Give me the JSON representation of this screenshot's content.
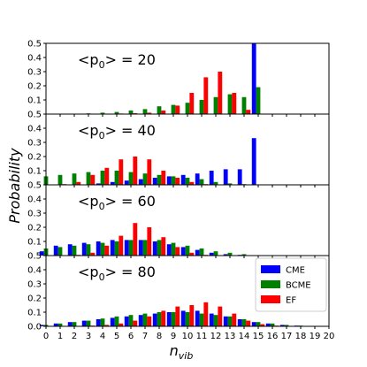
{
  "chart_data": {
    "type": "bar",
    "xlabel": "n",
    "xlabel_sub": "vib",
    "ylabel": "Probability",
    "x": [
      0,
      1,
      2,
      3,
      4,
      5,
      6,
      7,
      8,
      9,
      10,
      11,
      12,
      13,
      14,
      15,
      16,
      17,
      18,
      19,
      20
    ],
    "xlim": [
      0,
      20
    ],
    "ylim": [
      0,
      0.5
    ],
    "yticks": [
      "0.0",
      "0.1",
      "0.2",
      "0.3",
      "0.4",
      "0.5"
    ],
    "legend": {
      "placement": "bottom-right panel, upper-right",
      "entries": [
        {
          "name": "CME",
          "color": "#0000ff"
        },
        {
          "name": "BCME",
          "color": "#008000"
        },
        {
          "name": "EF",
          "color": "#ff0000"
        }
      ]
    },
    "panels": [
      {
        "label_prefix": "<p",
        "label_sub": "0",
        "label_suffix": "> = 20",
        "series": [
          {
            "name": "CME",
            "color": "#0000ff",
            "values": [
              0,
              0,
              0,
              0,
              0,
              0,
              0,
              0,
              0,
              0,
              0,
              0,
              0,
              0,
              0,
              0.5,
              0,
              0,
              0,
              0,
              0
            ]
          },
          {
            "name": "BCME",
            "color": "#008000",
            "values": [
              0,
              0,
              0.003,
              0.005,
              0.01,
              0.015,
              0.025,
              0.035,
              0.055,
              0.065,
              0.08,
              0.1,
              0.12,
              0.14,
              0.12,
              0.19,
              0,
              0,
              0,
              0,
              0
            ]
          },
          {
            "name": "EF",
            "color": "#ff0000",
            "values": [
              0,
              0,
              0,
              0,
              0.002,
              0.004,
              0.006,
              0.01,
              0.025,
              0.06,
              0.15,
              0.26,
              0.3,
              0.15,
              0.03,
              0,
              0,
              0,
              0,
              0,
              0
            ]
          }
        ]
      },
      {
        "label_prefix": "<p",
        "label_sub": "0",
        "label_suffix": "> = 40",
        "series": [
          {
            "name": "CME",
            "color": "#0000ff",
            "values": [
              0,
              0,
              0,
              0,
              0.01,
              0.02,
              0.03,
              0.04,
              0.05,
              0.06,
              0.07,
              0.08,
              0.1,
              0.11,
              0.11,
              0.33,
              0,
              0,
              0,
              0,
              0
            ]
          },
          {
            "name": "BCME",
            "color": "#008000",
            "values": [
              0.06,
              0.07,
              0.08,
              0.09,
              0.1,
              0.1,
              0.09,
              0.08,
              0.07,
              0.06,
              0.05,
              0.04,
              0.02,
              0.01,
              0.005,
              0,
              0,
              0,
              0,
              0,
              0
            ]
          },
          {
            "name": "EF",
            "color": "#ff0000",
            "values": [
              0,
              0.005,
              0.02,
              0.07,
              0.12,
              0.18,
              0.2,
              0.18,
              0.1,
              0.05,
              0.02,
              0.005,
              0.002,
              0,
              0,
              0,
              0,
              0,
              0,
              0,
              0
            ]
          }
        ]
      },
      {
        "label_prefix": "<p",
        "label_sub": "0",
        "label_suffix": "> = 60",
        "series": [
          {
            "name": "CME",
            "color": "#0000ff",
            "values": [
              0.03,
              0.07,
              0.08,
              0.09,
              0.1,
              0.11,
              0.11,
              0.11,
              0.1,
              0.08,
              0.06,
              0.04,
              0.02,
              0.01,
              0.005,
              0,
              0,
              0,
              0,
              0,
              0
            ]
          },
          {
            "name": "BCME",
            "color": "#008000",
            "values": [
              0.05,
              0.06,
              0.07,
              0.08,
              0.09,
              0.1,
              0.11,
              0.11,
              0.11,
              0.09,
              0.07,
              0.05,
              0.03,
              0.02,
              0.01,
              0,
              0,
              0,
              0,
              0,
              0
            ]
          },
          {
            "name": "EF",
            "color": "#ff0000",
            "values": [
              0,
              0.002,
              0.005,
              0.02,
              0.07,
              0.14,
              0.23,
              0.2,
              0.13,
              0.06,
              0.02,
              0.005,
              0.002,
              0,
              0,
              0,
              0,
              0,
              0,
              0,
              0
            ]
          }
        ]
      },
      {
        "label_prefix": "<p",
        "label_sub": "0",
        "label_suffix": "> = 80",
        "series": [
          {
            "name": "CME",
            "color": "#0000ff",
            "values": [
              0.01,
              0.02,
              0.03,
              0.04,
              0.05,
              0.06,
              0.07,
              0.08,
              0.09,
              0.1,
              0.11,
              0.11,
              0.09,
              0.07,
              0.05,
              0.03,
              0.02,
              0.01,
              0.005,
              0.002,
              0
            ]
          },
          {
            "name": "BCME",
            "color": "#008000",
            "values": [
              0.01,
              0.02,
              0.03,
              0.04,
              0.055,
              0.07,
              0.08,
              0.09,
              0.1,
              0.1,
              0.1,
              0.09,
              0.08,
              0.07,
              0.05,
              0.03,
              0.02,
              0.01,
              0.005,
              0.002,
              0
            ]
          },
          {
            "name": "EF",
            "color": "#ff0000",
            "values": [
              0,
              0,
              0,
              0.005,
              0.01,
              0.02,
              0.04,
              0.07,
              0.11,
              0.14,
              0.15,
              0.17,
              0.14,
              0.09,
              0.04,
              0.015,
              0.005,
              0.002,
              0,
              0,
              0
            ]
          }
        ]
      }
    ]
  }
}
